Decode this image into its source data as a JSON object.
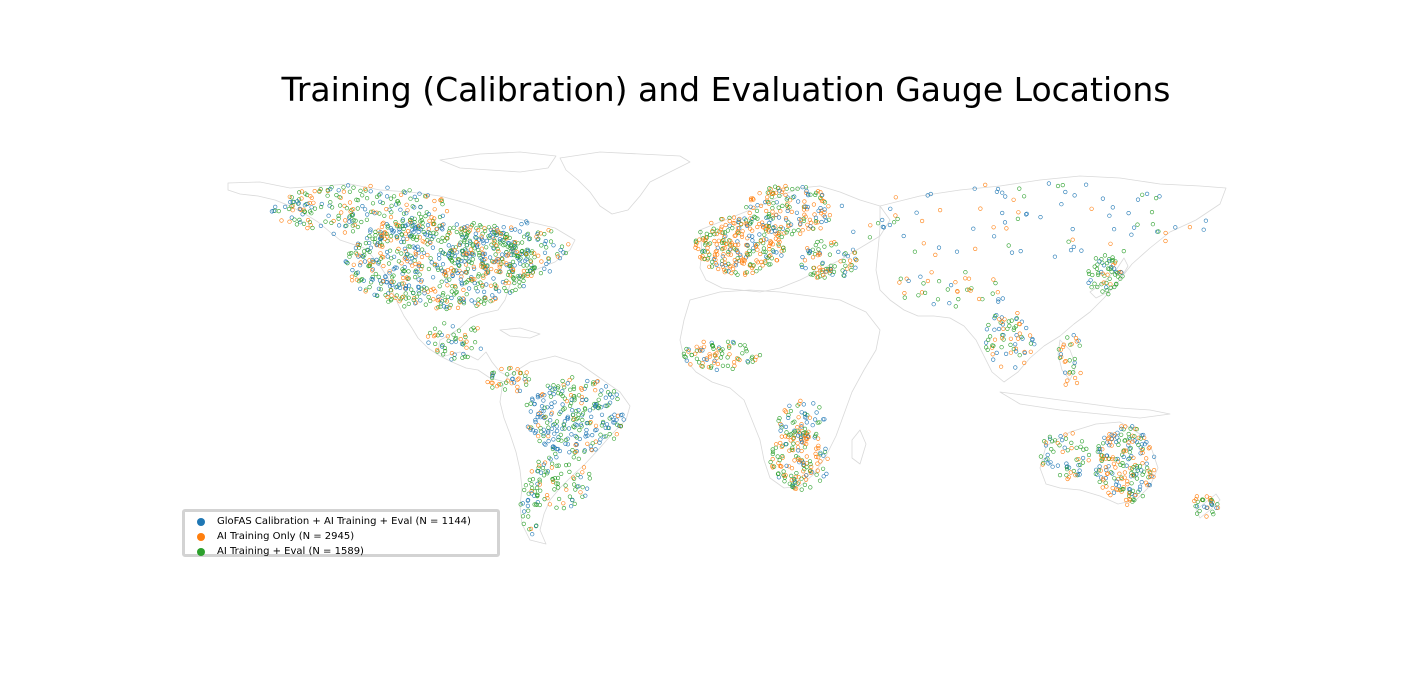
{
  "title": "Training (Calibration) and Evaluation Gauge Locations",
  "legend": {
    "items": [
      {
        "label": "GloFAS Calibration + AI Training + Eval (N = 1144)",
        "color": "#1f77b4"
      },
      {
        "label": "AI Training Only (N = 2945)",
        "color": "#ff7f0e"
      },
      {
        "label": "AI Training + Eval (N = 1589)",
        "color": "#2ca02c"
      }
    ]
  },
  "colors": {
    "calibration": "#1f77b4",
    "training_only": "#ff7f0e",
    "training_eval": "#2ca02c",
    "coastline": "#d9d9d9"
  }
}
